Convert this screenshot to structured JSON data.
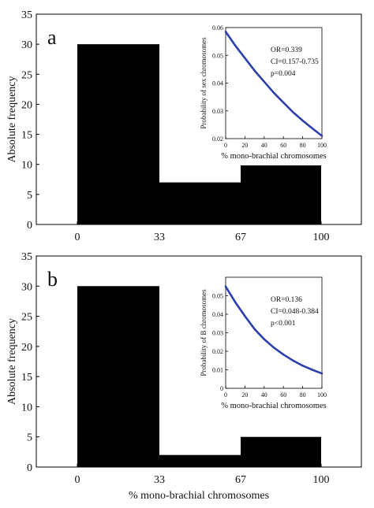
{
  "figure": {
    "shared_xlabel": "% mono-brachial chromosomes"
  },
  "chart_data": [
    {
      "panel_label": "a",
      "type": "bar",
      "categories": [
        "0",
        "33",
        "67",
        "100"
      ],
      "bins": [
        {
          "start": "0",
          "end": "33",
          "value": 30
        },
        {
          "start": "33",
          "end": "67",
          "value": 7
        },
        {
          "start": "67",
          "end": "100",
          "value": 10
        }
      ],
      "ylabel": "Absolute frequency",
      "ylim": [
        0,
        35
      ],
      "yticks": [
        0,
        5,
        10,
        15,
        20,
        25,
        30,
        35
      ],
      "inset": {
        "type": "line",
        "xlabel": "% mono-brachial chromosomes",
        "ylabel": "Probability of sex chromosomes",
        "xlim": [
          0,
          100
        ],
        "ylim": [
          0.02,
          0.06
        ],
        "xticks": [
          0,
          20,
          40,
          60,
          80,
          100
        ],
        "yticks": [
          0.02,
          0.03,
          0.04,
          0.05,
          0.06
        ],
        "ytick_labels": [
          "0.02",
          "0.03",
          "0.04",
          "0.05",
          "0.06"
        ],
        "stats": [
          "OR=0.339",
          "CI=0.157-0.735",
          "p=0.004"
        ],
        "line_color": "#2b3fae",
        "series": [
          {
            "x": [
              0,
              10,
              20,
              30,
              40,
              50,
              60,
              70,
              80,
              90,
              100
            ],
            "y": [
              0.0585,
              0.0535,
              0.049,
              0.0445,
              0.0405,
              0.0365,
              0.033,
              0.0295,
              0.0265,
              0.0237,
              0.021
            ]
          }
        ]
      }
    },
    {
      "panel_label": "b",
      "type": "bar",
      "categories": [
        "0",
        "33",
        "67",
        "100"
      ],
      "bins": [
        {
          "start": "0",
          "end": "33",
          "value": 30
        },
        {
          "start": "33",
          "end": "67",
          "value": 2
        },
        {
          "start": "67",
          "end": "100",
          "value": 5
        }
      ],
      "ylabel": "Absolute frequency",
      "ylim": [
        0,
        35
      ],
      "yticks": [
        0,
        5,
        10,
        15,
        20,
        25,
        30,
        35
      ],
      "inset": {
        "type": "line",
        "xlabel": "% mono-brachial chromosomes",
        "ylabel": "Probability of B chromosomes",
        "xlim": [
          0,
          100
        ],
        "ylim": [
          0,
          0.06
        ],
        "xticks": [
          0,
          20,
          40,
          60,
          80,
          100
        ],
        "yticks": [
          0,
          0.01,
          0.02,
          0.03,
          0.04,
          0.05
        ],
        "ytick_labels": [
          "0",
          "0.01",
          "0.02",
          "0.03",
          "0.04",
          "0.05"
        ],
        "stats": [
          "OR=0.136",
          "CI=0.048-0.384",
          "p<0.001"
        ],
        "line_color": "#2b3fae",
        "series": [
          {
            "x": [
              0,
              10,
              20,
              30,
              40,
              50,
              60,
              70,
              80,
              90,
              100
            ],
            "y": [
              0.055,
              0.0465,
              0.039,
              0.032,
              0.0265,
              0.022,
              0.0182,
              0.015,
              0.0122,
              0.01,
              0.008
            ]
          }
        ]
      }
    }
  ]
}
